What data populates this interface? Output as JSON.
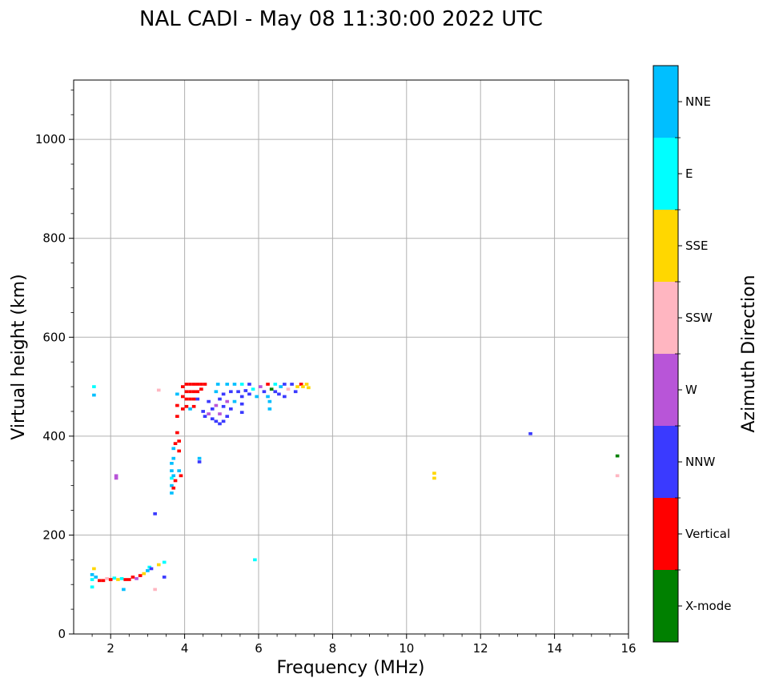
{
  "chart_data": {
    "type": "scatter",
    "title": "NAL CADI - May 08 11:30:00 2022 UTC",
    "xlabel": "Frequency (MHz)",
    "ylabel": "Virtual height (km)",
    "xlim": [
      1,
      16
    ],
    "ylim": [
      0,
      1120
    ],
    "xticks": [
      2,
      4,
      6,
      8,
      10,
      12,
      14,
      16
    ],
    "yticks": [
      0,
      200,
      400,
      600,
      800,
      1000
    ],
    "grid": true,
    "colorbar": {
      "label": "Azimuth Direction",
      "categories": [
        {
          "name": "X-mode",
          "color": "#008000"
        },
        {
          "name": "Vertical",
          "color": "#ff0000"
        },
        {
          "name": "NNW",
          "color": "#3a3aff"
        },
        {
          "name": "W",
          "color": "#b855d8"
        },
        {
          "name": "SSW",
          "color": "#ffb6c1"
        },
        {
          "name": "SSE",
          "color": "#ffd700"
        },
        {
          "name": "E",
          "color": "#00ffff"
        },
        {
          "name": "NNE",
          "color": "#00bfff"
        }
      ]
    },
    "points": [
      {
        "f": 1.55,
        "h": 500,
        "d": "E"
      },
      {
        "f": 1.55,
        "h": 483,
        "d": "NNE"
      },
      {
        "f": 1.5,
        "h": 120,
        "d": "NNE"
      },
      {
        "f": 1.5,
        "h": 110,
        "d": "E"
      },
      {
        "f": 1.5,
        "h": 95,
        "d": "E"
      },
      {
        "f": 1.55,
        "h": 132,
        "d": "SSE"
      },
      {
        "f": 1.6,
        "h": 115,
        "d": "NNE"
      },
      {
        "f": 1.7,
        "h": 108,
        "d": "Vertical"
      },
      {
        "f": 1.8,
        "h": 108,
        "d": "Vertical"
      },
      {
        "f": 1.9,
        "h": 112,
        "d": "SSW"
      },
      {
        "f": 2.0,
        "h": 110,
        "d": "Vertical"
      },
      {
        "f": 2.1,
        "h": 113,
        "d": "E"
      },
      {
        "f": 2.2,
        "h": 110,
        "d": "SSE"
      },
      {
        "f": 2.3,
        "h": 112,
        "d": "E"
      },
      {
        "f": 2.35,
        "h": 90,
        "d": "NNE"
      },
      {
        "f": 2.4,
        "h": 110,
        "d": "Vertical"
      },
      {
        "f": 2.5,
        "h": 110,
        "d": "Vertical"
      },
      {
        "f": 2.6,
        "h": 115,
        "d": "Vertical"
      },
      {
        "f": 2.7,
        "h": 112,
        "d": "W"
      },
      {
        "f": 2.8,
        "h": 118,
        "d": "Vertical"
      },
      {
        "f": 2.9,
        "h": 122,
        "d": "SSE"
      },
      {
        "f": 3.0,
        "h": 128,
        "d": "NNE"
      },
      {
        "f": 3.05,
        "h": 135,
        "d": "E"
      },
      {
        "f": 3.1,
        "h": 132,
        "d": "NNW"
      },
      {
        "f": 3.2,
        "h": 90,
        "d": "SSW"
      },
      {
        "f": 3.3,
        "h": 140,
        "d": "SSE"
      },
      {
        "f": 3.45,
        "h": 145,
        "d": "E"
      },
      {
        "f": 3.45,
        "h": 115,
        "d": "NNW"
      },
      {
        "f": 2.15,
        "h": 320,
        "d": "W"
      },
      {
        "f": 2.15,
        "h": 315,
        "d": "W"
      },
      {
        "f": 3.2,
        "h": 243,
        "d": "NNW"
      },
      {
        "f": 3.3,
        "h": 493,
        "d": "SSW"
      },
      {
        "f": 3.65,
        "h": 285,
        "d": "NNE"
      },
      {
        "f": 3.65,
        "h": 300,
        "d": "NNE"
      },
      {
        "f": 3.65,
        "h": 315,
        "d": "E"
      },
      {
        "f": 3.65,
        "h": 330,
        "d": "NNE"
      },
      {
        "f": 3.65,
        "h": 345,
        "d": "NNE"
      },
      {
        "f": 3.7,
        "h": 295,
        "d": "Vertical"
      },
      {
        "f": 3.7,
        "h": 320,
        "d": "NNE"
      },
      {
        "f": 3.7,
        "h": 355,
        "d": "NNE"
      },
      {
        "f": 3.7,
        "h": 375,
        "d": "NNE"
      },
      {
        "f": 3.75,
        "h": 310,
        "d": "Vertical"
      },
      {
        "f": 3.75,
        "h": 385,
        "d": "Vertical"
      },
      {
        "f": 3.8,
        "h": 407,
        "d": "Vertical"
      },
      {
        "f": 3.8,
        "h": 440,
        "d": "Vertical"
      },
      {
        "f": 3.8,
        "h": 462,
        "d": "Vertical"
      },
      {
        "f": 3.8,
        "h": 485,
        "d": "NNE"
      },
      {
        "f": 3.85,
        "h": 390,
        "d": "Vertical"
      },
      {
        "f": 3.85,
        "h": 330,
        "d": "NNE"
      },
      {
        "f": 3.85,
        "h": 370,
        "d": "Vertical"
      },
      {
        "f": 3.9,
        "h": 320,
        "d": "Vertical"
      },
      {
        "f": 3.95,
        "h": 500,
        "d": "Vertical"
      },
      {
        "f": 3.95,
        "h": 480,
        "d": "Vertical"
      },
      {
        "f": 3.95,
        "h": 455,
        "d": "Vertical"
      },
      {
        "f": 4.05,
        "h": 505,
        "d": "Vertical"
      },
      {
        "f": 4.05,
        "h": 490,
        "d": "Vertical"
      },
      {
        "f": 4.05,
        "h": 475,
        "d": "Vertical"
      },
      {
        "f": 4.05,
        "h": 460,
        "d": "Vertical"
      },
      {
        "f": 4.15,
        "h": 505,
        "d": "Vertical"
      },
      {
        "f": 4.15,
        "h": 490,
        "d": "Vertical"
      },
      {
        "f": 4.15,
        "h": 475,
        "d": "Vertical"
      },
      {
        "f": 4.15,
        "h": 455,
        "d": "NNE"
      },
      {
        "f": 4.25,
        "h": 505,
        "d": "Vertical"
      },
      {
        "f": 4.25,
        "h": 490,
        "d": "Vertical"
      },
      {
        "f": 4.25,
        "h": 475,
        "d": "Vertical"
      },
      {
        "f": 4.25,
        "h": 460,
        "d": "Vertical"
      },
      {
        "f": 4.35,
        "h": 505,
        "d": "Vertical"
      },
      {
        "f": 4.35,
        "h": 490,
        "d": "Vertical"
      },
      {
        "f": 4.35,
        "h": 475,
        "d": "NNW"
      },
      {
        "f": 4.4,
        "h": 355,
        "d": "NNE"
      },
      {
        "f": 4.4,
        "h": 348,
        "d": "NNW"
      },
      {
        "f": 4.45,
        "h": 505,
        "d": "Vertical"
      },
      {
        "f": 4.45,
        "h": 495,
        "d": "Vertical"
      },
      {
        "f": 4.5,
        "h": 450,
        "d": "NNW"
      },
      {
        "f": 4.55,
        "h": 505,
        "d": "Vertical"
      },
      {
        "f": 4.55,
        "h": 440,
        "d": "NNW"
      },
      {
        "f": 4.65,
        "h": 470,
        "d": "NNW"
      },
      {
        "f": 4.65,
        "h": 445,
        "d": "W"
      },
      {
        "f": 4.75,
        "h": 455,
        "d": "NNW"
      },
      {
        "f": 4.75,
        "h": 435,
        "d": "NNW"
      },
      {
        "f": 4.85,
        "h": 490,
        "d": "NNE"
      },
      {
        "f": 4.85,
        "h": 462,
        "d": "W"
      },
      {
        "f": 4.85,
        "h": 430,
        "d": "NNW"
      },
      {
        "f": 4.9,
        "h": 505,
        "d": "NNE"
      },
      {
        "f": 4.95,
        "h": 475,
        "d": "NNW"
      },
      {
        "f": 4.95,
        "h": 445,
        "d": "W"
      },
      {
        "f": 4.95,
        "h": 425,
        "d": "NNW"
      },
      {
        "f": 5.05,
        "h": 485,
        "d": "NNW"
      },
      {
        "f": 5.05,
        "h": 460,
        "d": "NNW"
      },
      {
        "f": 5.05,
        "h": 430,
        "d": "NNW"
      },
      {
        "f": 5.15,
        "h": 505,
        "d": "NNE"
      },
      {
        "f": 5.15,
        "h": 470,
        "d": "W"
      },
      {
        "f": 5.15,
        "h": 440,
        "d": "NNW"
      },
      {
        "f": 5.25,
        "h": 490,
        "d": "NNW"
      },
      {
        "f": 5.25,
        "h": 455,
        "d": "NNW"
      },
      {
        "f": 5.35,
        "h": 505,
        "d": "NNE"
      },
      {
        "f": 5.35,
        "h": 470,
        "d": "NNE"
      },
      {
        "f": 5.45,
        "h": 490,
        "d": "NNW"
      },
      {
        "f": 5.55,
        "h": 505,
        "d": "E"
      },
      {
        "f": 5.55,
        "h": 480,
        "d": "NNW"
      },
      {
        "f": 5.55,
        "h": 465,
        "d": "NNW"
      },
      {
        "f": 5.55,
        "h": 448,
        "d": "NNW"
      },
      {
        "f": 5.65,
        "h": 492,
        "d": "NNW"
      },
      {
        "f": 5.75,
        "h": 505,
        "d": "NNW"
      },
      {
        "f": 5.75,
        "h": 485,
        "d": "NNW"
      },
      {
        "f": 5.85,
        "h": 495,
        "d": "E"
      },
      {
        "f": 5.9,
        "h": 150,
        "d": "E"
      },
      {
        "f": 5.95,
        "h": 480,
        "d": "NNE"
      },
      {
        "f": 6.05,
        "h": 500,
        "d": "W"
      },
      {
        "f": 6.15,
        "h": 490,
        "d": "NNW"
      },
      {
        "f": 6.25,
        "h": 505,
        "d": "Vertical"
      },
      {
        "f": 6.25,
        "h": 480,
        "d": "NNE"
      },
      {
        "f": 6.3,
        "h": 470,
        "d": "NNE"
      },
      {
        "f": 6.3,
        "h": 455,
        "d": "NNE"
      },
      {
        "f": 6.35,
        "h": 495,
        "d": "X-mode"
      },
      {
        "f": 6.45,
        "h": 505,
        "d": "E"
      },
      {
        "f": 6.45,
        "h": 490,
        "d": "NNW"
      },
      {
        "f": 6.55,
        "h": 485,
        "d": "NNW"
      },
      {
        "f": 6.6,
        "h": 500,
        "d": "NNE"
      },
      {
        "f": 6.7,
        "h": 505,
        "d": "NNW"
      },
      {
        "f": 6.7,
        "h": 480,
        "d": "NNW"
      },
      {
        "f": 6.8,
        "h": 495,
        "d": "SSW"
      },
      {
        "f": 6.9,
        "h": 505,
        "d": "NNW"
      },
      {
        "f": 7.0,
        "h": 490,
        "d": "NNW"
      },
      {
        "f": 7.05,
        "h": 500,
        "d": "SSE"
      },
      {
        "f": 7.15,
        "h": 505,
        "d": "Vertical"
      },
      {
        "f": 7.2,
        "h": 500,
        "d": "SSE"
      },
      {
        "f": 7.3,
        "h": 505,
        "d": "SSE"
      },
      {
        "f": 7.35,
        "h": 498,
        "d": "SSE"
      },
      {
        "f": 10.75,
        "h": 325,
        "d": "SSE"
      },
      {
        "f": 10.75,
        "h": 315,
        "d": "SSE"
      },
      {
        "f": 13.35,
        "h": 405,
        "d": "NNW"
      },
      {
        "f": 15.7,
        "h": 360,
        "d": "X-mode"
      },
      {
        "f": 15.7,
        "h": 320,
        "d": "SSW"
      }
    ]
  }
}
